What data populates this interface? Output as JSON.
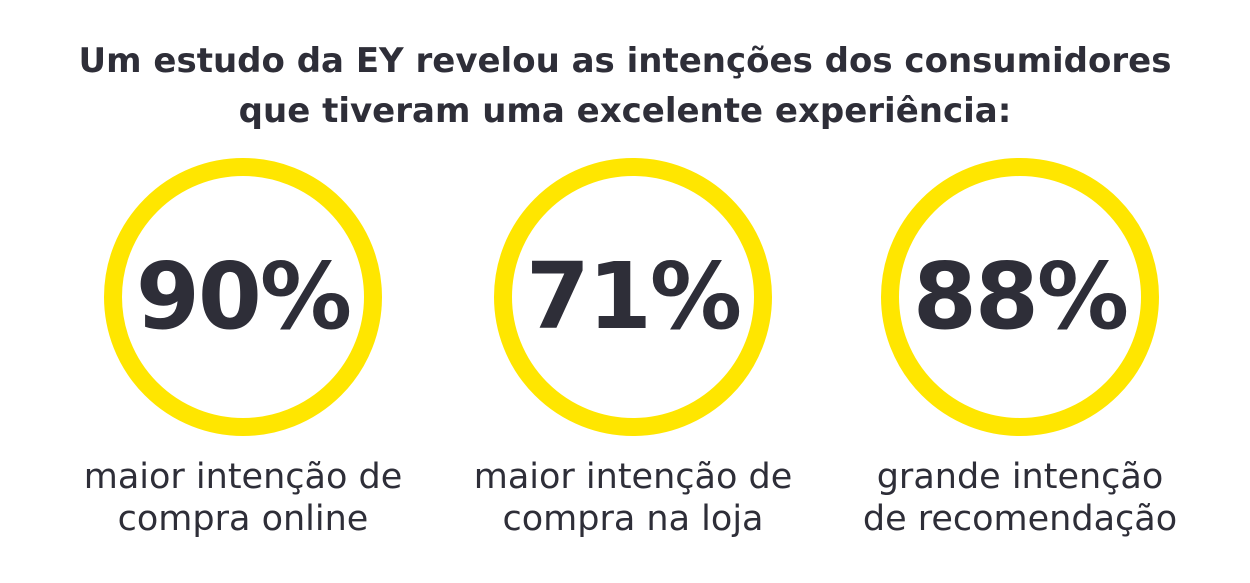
{
  "header": {
    "title_line1": "Um estudo da EY revelou as intenções dos consumidores",
    "title_line2": "que tiveram uma excelente experiência:"
  },
  "stats": [
    {
      "value": "90%",
      "caption_line1": "maior intenção de",
      "caption_line2": "compra online"
    },
    {
      "value": "71%",
      "caption_line1": "maior intenção de",
      "caption_line2": "compra na loja"
    },
    {
      "value": "88%",
      "caption_line1": "grande intenção",
      "caption_line2": "de recomendação"
    }
  ],
  "colors": {
    "ring": "#ffe600",
    "text": "#2e2e38",
    "background": "#ffffff"
  }
}
